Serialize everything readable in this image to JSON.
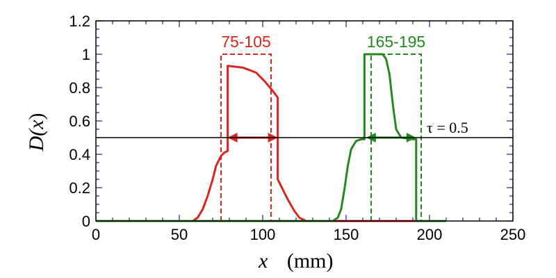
{
  "chart_data": {
    "type": "line",
    "xlim": [
      0,
      250
    ],
    "ylim": [
      0,
      1.2
    ],
    "x_ticks": [
      0,
      50,
      100,
      150,
      200,
      250
    ],
    "y_ticks": [
      "0",
      "0.2",
      "0.4",
      "0.6",
      "0.8",
      "1",
      "1.2"
    ],
    "xlabel": {
      "var": "x",
      "unit": "(mm)"
    },
    "ylabel": {
      "pre": "D(",
      "var": "x",
      "post": ")"
    },
    "threshold": {
      "value": 0.5,
      "label": "τ = 0.5"
    },
    "colors": {
      "red": "#d9241f",
      "green": "#23891f",
      "axis": "#000000",
      "tick": "#1a1aa0"
    },
    "series": [
      {
        "color": "red",
        "points": [
          [
            0,
            0
          ],
          [
            58,
            0
          ],
          [
            61,
            0.02
          ],
          [
            64,
            0.07
          ],
          [
            67,
            0.15
          ],
          [
            70,
            0.25
          ],
          [
            72,
            0.33
          ],
          [
            75,
            0.39
          ],
          [
            77,
            0.41
          ],
          [
            79,
            0.42
          ],
          [
            79,
            0.93
          ],
          [
            88,
            0.92
          ],
          [
            96,
            0.89
          ],
          [
            101,
            0.84
          ],
          [
            106,
            0.78
          ],
          [
            109,
            0.74
          ],
          [
            109,
            0.25
          ],
          [
            111,
            0.21
          ],
          [
            115,
            0.13
          ],
          [
            119,
            0.06
          ],
          [
            122,
            0.02
          ],
          [
            126,
            0
          ],
          [
            210,
            0
          ]
        ]
      },
      {
        "color": "green",
        "points": [
          [
            0,
            0
          ],
          [
            142,
            0
          ],
          [
            145,
            0.02
          ],
          [
            147,
            0.07
          ],
          [
            149,
            0.19
          ],
          [
            151,
            0.33
          ],
          [
            153,
            0.43
          ],
          [
            156,
            0.48
          ],
          [
            159,
            0.49
          ],
          [
            161,
            0.49
          ],
          [
            161,
            1.0
          ],
          [
            172,
            1.0
          ],
          [
            174,
            0.97
          ],
          [
            176,
            0.88
          ],
          [
            178,
            0.7
          ],
          [
            180,
            0.55
          ],
          [
            183,
            0.5
          ],
          [
            190,
            0.49
          ],
          [
            192,
            0.49
          ],
          [
            192,
            0
          ],
          [
            210,
            0
          ]
        ]
      }
    ],
    "windows": [
      {
        "label": "75-105",
        "x0": 75,
        "x1": 105,
        "top": 1.0,
        "color": "red"
      },
      {
        "label": "165-195",
        "x0": 165,
        "x1": 195,
        "top": 1.0,
        "color": "green"
      }
    ],
    "arrows": [
      {
        "x0": 79,
        "x1": 109,
        "y": 0.5,
        "color": "red"
      },
      {
        "x0": 162,
        "x1": 192,
        "y": 0.5,
        "color": "green"
      }
    ]
  }
}
